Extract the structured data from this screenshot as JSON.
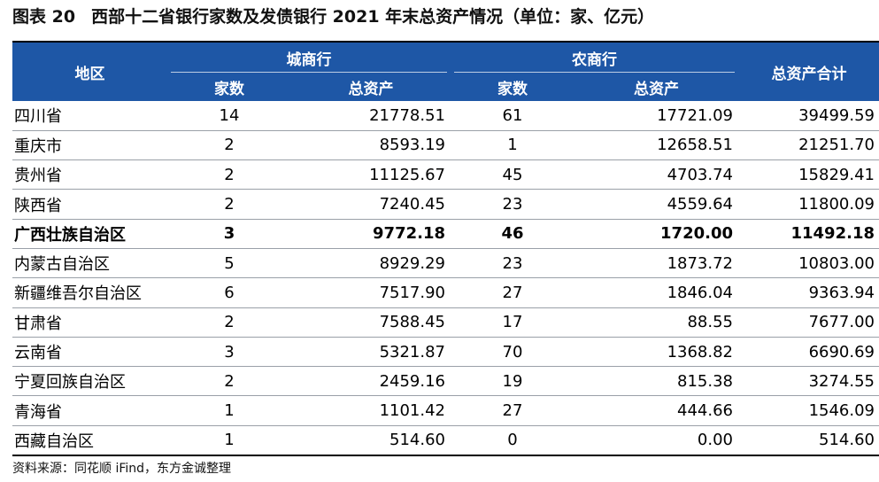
{
  "title": {
    "figure_no": "图表 20",
    "text": "西部十二省银行家数及发债银行 2021 年末总资产情况（单位：家、亿元）"
  },
  "headers": {
    "region": "地区",
    "city_bank": "城商行",
    "rural_bank": "农商行",
    "count": "家数",
    "assets": "总资产",
    "total": "总资产合计"
  },
  "rows": [
    {
      "region": "四川省",
      "city_count": "14",
      "city_assets": "21778.51",
      "rural_count": "61",
      "rural_assets": "17721.09",
      "total": "39499.59"
    },
    {
      "region": "重庆市",
      "city_count": "2",
      "city_assets": "8593.19",
      "rural_count": "1",
      "rural_assets": "12658.51",
      "total": "21251.70"
    },
    {
      "region": "贵州省",
      "city_count": "2",
      "city_assets": "11125.67",
      "rural_count": "45",
      "rural_assets": "4703.74",
      "total": "15829.41"
    },
    {
      "region": "陕西省",
      "city_count": "2",
      "city_assets": "7240.45",
      "rural_count": "23",
      "rural_assets": "4559.64",
      "total": "11800.09"
    },
    {
      "region": "广西壮族自治区",
      "city_count": "3",
      "city_assets": "9772.18",
      "rural_count": "46",
      "rural_assets": "1720.00",
      "total": "11492.18",
      "bold": true
    },
    {
      "region": "内蒙古自治区",
      "city_count": "5",
      "city_assets": "8929.29",
      "rural_count": "23",
      "rural_assets": "1873.72",
      "total": "10803.00"
    },
    {
      "region": "新疆维吾尔自治区",
      "city_count": "6",
      "city_assets": "7517.90",
      "rural_count": "27",
      "rural_assets": "1846.04",
      "total": "9363.94"
    },
    {
      "region": "甘肃省",
      "city_count": "2",
      "city_assets": "7588.45",
      "rural_count": "17",
      "rural_assets": "88.55",
      "total": "7677.00"
    },
    {
      "region": "云南省",
      "city_count": "3",
      "city_assets": "5321.87",
      "rural_count": "70",
      "rural_assets": "1368.82",
      "total": "6690.69"
    },
    {
      "region": "宁夏回族自治区",
      "city_count": "2",
      "city_assets": "2459.16",
      "rural_count": "19",
      "rural_assets": "815.38",
      "total": "3274.55"
    },
    {
      "region": "青海省",
      "city_count": "1",
      "city_assets": "1101.42",
      "rural_count": "27",
      "rural_assets": "444.66",
      "total": "1546.09"
    },
    {
      "region": "西藏自治区",
      "city_count": "1",
      "city_assets": "514.60",
      "rural_count": "0",
      "rural_assets": "0.00",
      "total": "514.60"
    }
  ],
  "source": "资料来源：同花顺 iFind，东方金诚整理",
  "colors": {
    "header_bg": "#1e57a6",
    "header_text": "#ffffff"
  }
}
